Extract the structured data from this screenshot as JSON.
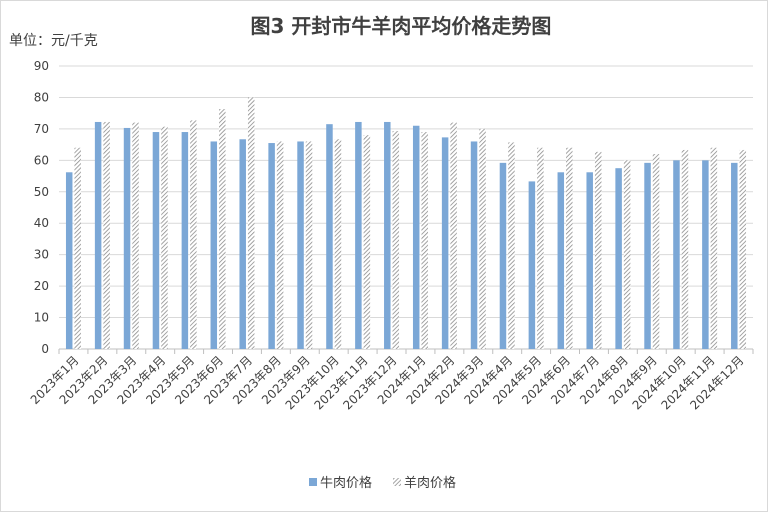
{
  "chart_data": {
    "type": "bar",
    "title": "图3  开封市牛羊肉平均价格走势图",
    "unit_label": "单位：元/千克",
    "ylim": [
      0,
      90
    ],
    "yticks": [
      0,
      10,
      20,
      30,
      40,
      50,
      60,
      70,
      80,
      90
    ],
    "grid": true,
    "legend_position": "bottom",
    "categories": [
      "2023年1月",
      "2023年2月",
      "2023年3月",
      "2023年4月",
      "2023年5月",
      "2023年6月",
      "2023年7月",
      "2023年8月",
      "2023年9月",
      "2023年10月",
      "2023年11月",
      "2023年12月",
      "2024年1月",
      "2024年2月",
      "2024年3月",
      "2024年4月",
      "2024年5月",
      "2024年6月",
      "2024年7月",
      "2024年8月",
      "2024年9月",
      "2024年10月",
      "2024年11月",
      "2024年12月"
    ],
    "series": [
      {
        "name": "牛肉价格",
        "color": "#7ba7d6",
        "pattern": "solid",
        "values": [
          56.2,
          72.2,
          70.3,
          69.0,
          69.0,
          66.0,
          66.7,
          65.5,
          66.0,
          71.5,
          72.2,
          72.2,
          71.0,
          67.3,
          66.0,
          59.2,
          53.3,
          56.2,
          56.2,
          57.5,
          59.2,
          60.0,
          60.0,
          59.2
        ]
      },
      {
        "name": "羊肉价格",
        "color": "#a6a6a6",
        "pattern": "hatch",
        "values": [
          64.0,
          72.2,
          72.0,
          70.7,
          72.7,
          76.3,
          80.0,
          66.0,
          66.0,
          66.7,
          68.0,
          69.3,
          69.0,
          72.0,
          70.0,
          65.7,
          64.0,
          64.0,
          62.7,
          60.0,
          62.0,
          63.3,
          64.0,
          63.3
        ]
      }
    ]
  }
}
